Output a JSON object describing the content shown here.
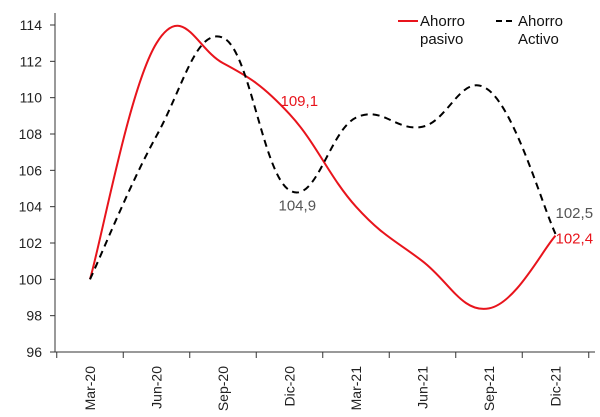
{
  "chart_data": {
    "type": "line",
    "title": "",
    "xlabel": "",
    "ylabel": "",
    "categories": [
      "Mar-20",
      "Jun-20",
      "Sep-20",
      "Dic-20",
      "Mar-21",
      "Jun-21",
      "Sep-21",
      "Dic-21"
    ],
    "ylim": [
      96,
      114
    ],
    "yticks": [
      96,
      98,
      100,
      102,
      104,
      106,
      108,
      110,
      112,
      114
    ],
    "grid": false,
    "legend_position": "top-right",
    "series": [
      {
        "name": "Ahorro pasivo",
        "name_lines": [
          "Ahorro",
          "pasivo"
        ],
        "color": "#e8141c",
        "dash": "solid",
        "values": [
          100.0,
          113.0,
          111.9,
          109.1,
          104.0,
          101.0,
          98.4,
          102.4
        ]
      },
      {
        "name": "Ahorro Activo",
        "name_lines": [
          "Ahorro",
          "Activo"
        ],
        "color": "#000000",
        "dash": "dashed",
        "values": [
          100.0,
          107.9,
          113.3,
          104.9,
          108.9,
          108.4,
          110.4,
          102.5
        ]
      }
    ],
    "annotations": [
      {
        "text": "109,1",
        "series": 0,
        "index": 3,
        "color": "#e8141c"
      },
      {
        "text": "104,9",
        "series": 1,
        "index": 3,
        "color": "#555555"
      },
      {
        "text": "102,5",
        "series": 1,
        "index": 7,
        "color": "#555555"
      },
      {
        "text": "102,4",
        "series": 0,
        "index": 7,
        "color": "#e8141c"
      }
    ]
  }
}
